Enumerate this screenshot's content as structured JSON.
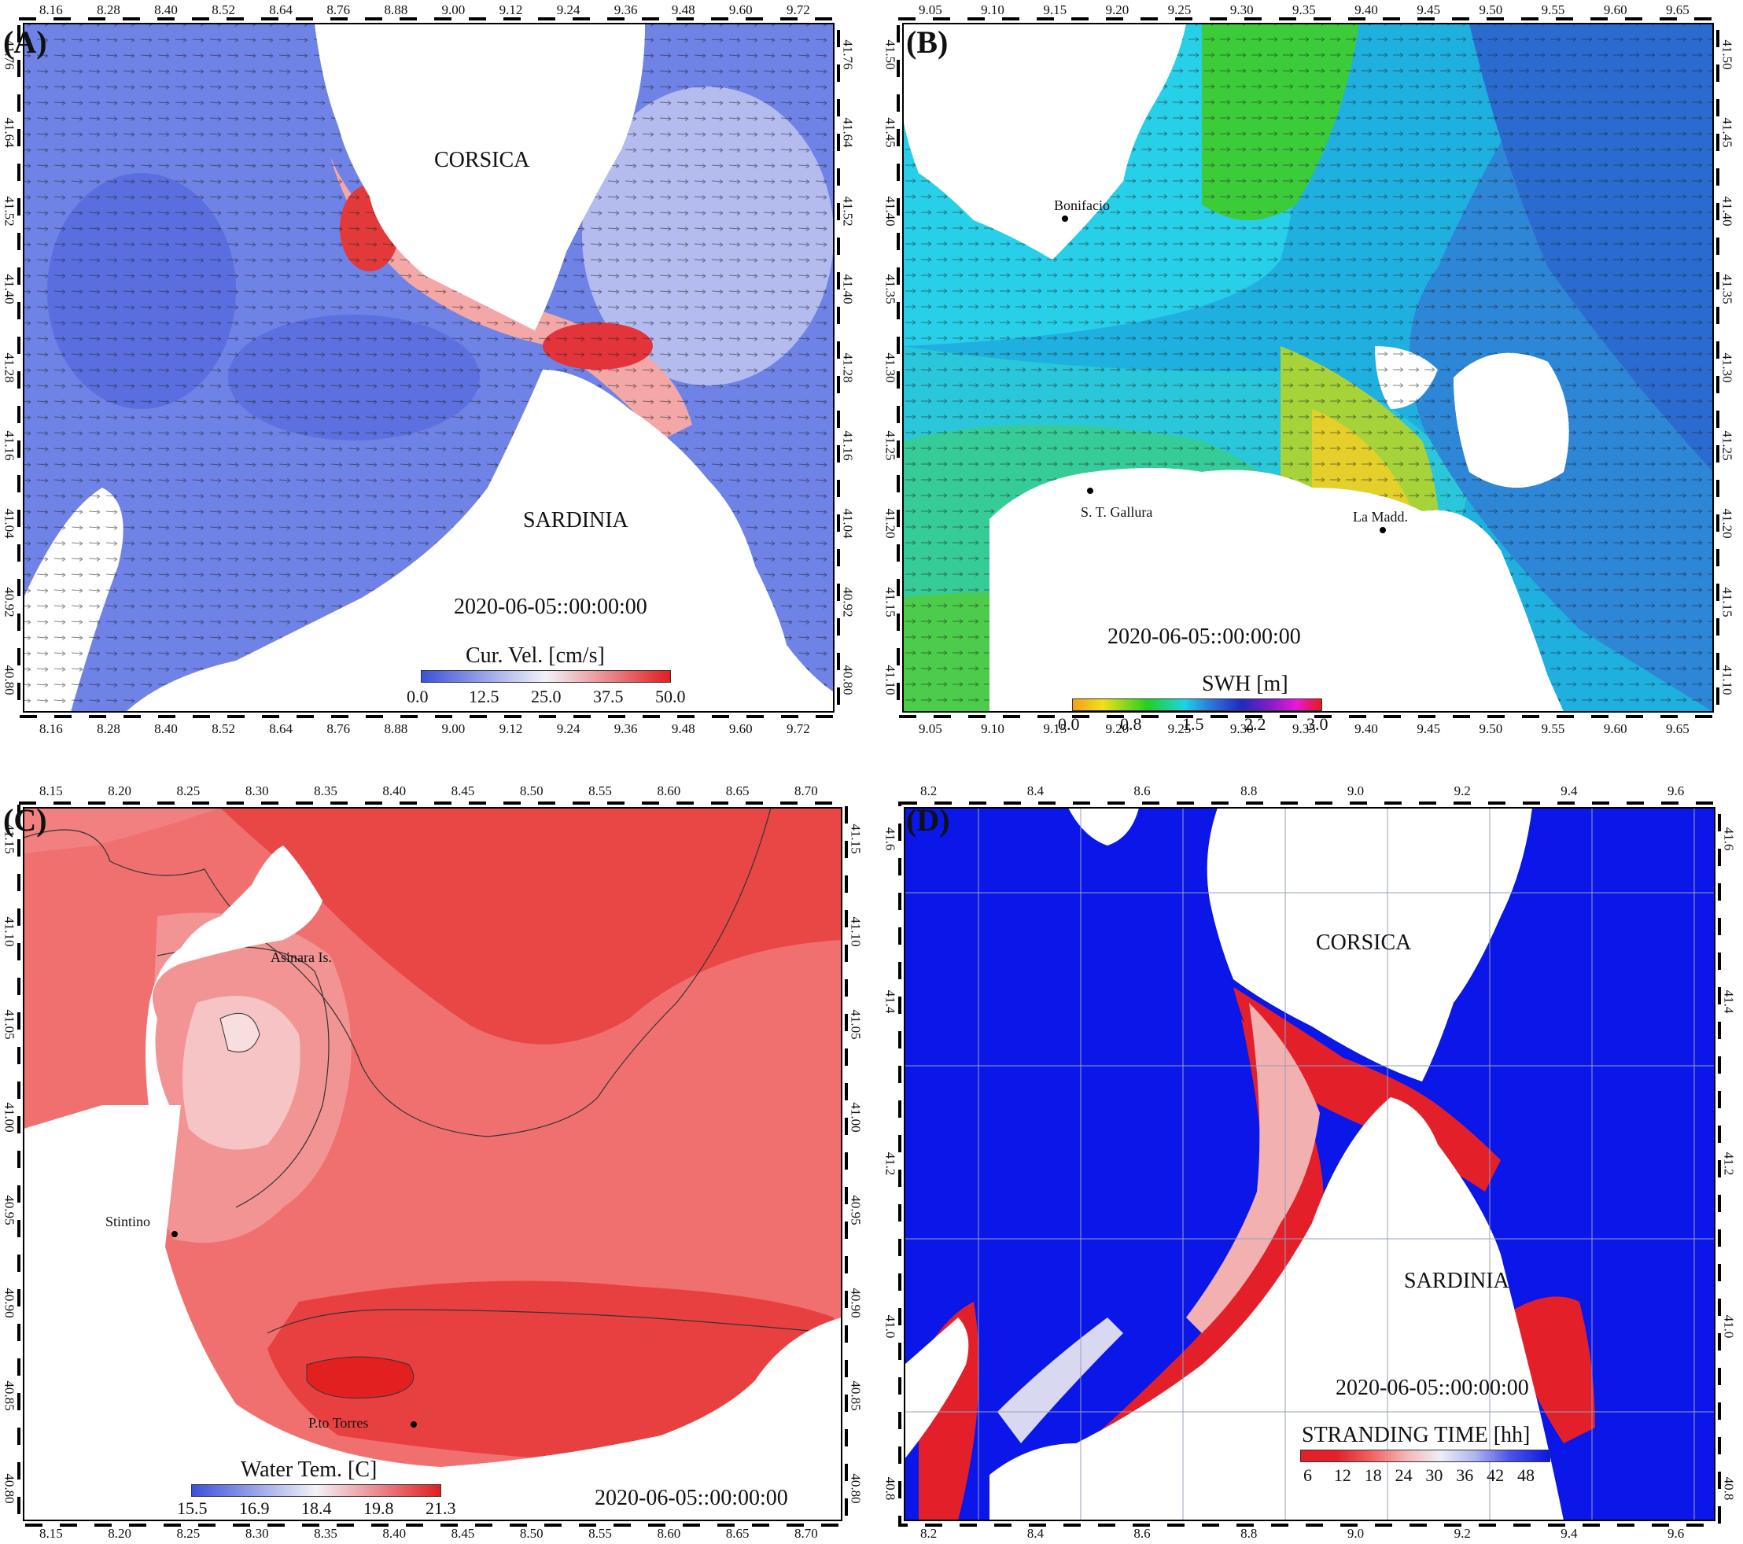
{
  "colors": {
    "vel_low": "#3b52d8",
    "vel_mid": "#f2f2f8",
    "vel_high": "#e01f1f",
    "swh_yellow": "#f2d21a",
    "swh_green": "#2fd02a",
    "swh_cyan": "#1cd4e6",
    "swh_blue": "#2f7bd6",
    "temp_pale": "#f6d4d4",
    "temp_red": "#f06b6b",
    "temp_deep": "#e53a3a",
    "strand_blue": "#0a17e8",
    "strand_red": "#e3202a"
  },
  "panels": [
    {
      "id": "A",
      "letter": "(A)",
      "top_ticks": [
        "8.16",
        "8.28",
        "8.40",
        "8.52",
        "8.64",
        "8.76",
        "8.88",
        "9.00",
        "9.12",
        "9.24",
        "9.36",
        "9.48",
        "9.60",
        "9.72"
      ],
      "bottom_ticks": [
        "8.16",
        "8.28",
        "8.40",
        "8.52",
        "8.64",
        "8.76",
        "8.88",
        "9.00",
        "9.12",
        "9.24",
        "9.36",
        "9.48",
        "9.60",
        "9.72"
      ],
      "left_ticks": [
        "41.76",
        "41.64",
        "41.52",
        "41.40",
        "41.28",
        "41.16",
        "41.04",
        "40.92",
        "40.80"
      ],
      "right_ticks": [
        "41.76",
        "41.64",
        "41.52",
        "41.40",
        "41.28",
        "41.16",
        "41.04",
        "40.92",
        "40.80"
      ],
      "places": [
        {
          "name": "CORSICA",
          "size": "big"
        },
        {
          "name": "SARDINIA",
          "size": "big"
        }
      ],
      "date": "2020-06-05::00:00:00",
      "colorbar": {
        "title": "Cur. Vel. [cm/s]",
        "ticks": [
          "0.0",
          "12.5",
          "25.0",
          "37.5",
          "50.0"
        ],
        "type": "velocity"
      }
    },
    {
      "id": "B",
      "letter": "(B)",
      "top_ticks": [
        "9.05",
        "9.10",
        "9.15",
        "9.20",
        "9.25",
        "9.30",
        "9.35",
        "9.40",
        "9.45",
        "9.50",
        "9.55",
        "9.60",
        "9.65"
      ],
      "bottom_ticks": [
        "9.05",
        "9.10",
        "9.15",
        "9.20",
        "9.25",
        "9.30",
        "9.35",
        "9.40",
        "9.45",
        "9.50",
        "9.55",
        "9.60",
        "9.65"
      ],
      "left_ticks": [
        "41.50",
        "41.45",
        "41.40",
        "41.35",
        "41.30",
        "41.25",
        "41.20",
        "41.15",
        "41.10"
      ],
      "right_ticks": [
        "41.50",
        "41.45",
        "41.40",
        "41.35",
        "41.30",
        "41.25",
        "41.20",
        "41.15",
        "41.10"
      ],
      "places": [
        {
          "name": "Bonifacio",
          "size": "small"
        },
        {
          "name": "S. T. Gallura",
          "size": "small"
        },
        {
          "name": "La Madd.",
          "size": "small"
        }
      ],
      "date": "2020-06-05::00:00:00",
      "colorbar": {
        "title": "SWH [m]",
        "ticks": [
          "0.0",
          "0.8",
          "1.5",
          "2.2",
          "3.0"
        ],
        "type": "swh"
      }
    },
    {
      "id": "C",
      "letter": "(C)",
      "top_ticks": [
        "8.15",
        "8.20",
        "8.25",
        "8.30",
        "8.35",
        "8.40",
        "8.45",
        "8.50",
        "8.55",
        "8.60",
        "8.65",
        "8.70"
      ],
      "bottom_ticks": [
        "8.15",
        "8.20",
        "8.25",
        "8.30",
        "8.35",
        "8.40",
        "8.45",
        "8.50",
        "8.55",
        "8.60",
        "8.65",
        "8.70"
      ],
      "left_ticks": [
        "41.15",
        "41.10",
        "41.05",
        "41.00",
        "40.95",
        "40.90",
        "40.85",
        "40.80"
      ],
      "right_ticks": [
        "41.15",
        "41.10",
        "41.05",
        "41.00",
        "40.95",
        "40.90",
        "40.85",
        "40.80"
      ],
      "places": [
        {
          "name": "Asinara Is.",
          "size": "small"
        },
        {
          "name": "Stintino",
          "size": "small"
        },
        {
          "name": "P.to Torres",
          "size": "small"
        }
      ],
      "date": "2020-06-05::00:00:00",
      "colorbar": {
        "title": "Water Tem. [C]",
        "ticks": [
          "15.5",
          "16.9",
          "18.4",
          "19.8",
          "21.3"
        ],
        "type": "velocity"
      }
    },
    {
      "id": "D",
      "letter": "(D)",
      "top_ticks": [
        "8.2",
        "8.4",
        "8.6",
        "8.8",
        "9.0",
        "9.2",
        "9.4",
        "9.6"
      ],
      "bottom_ticks": [
        "8.2",
        "8.4",
        "8.6",
        "8.8",
        "9.0",
        "9.2",
        "9.4",
        "9.6"
      ],
      "left_ticks": [
        "41.6",
        "41.4",
        "41.2",
        "41.0",
        "40.8"
      ],
      "right_ticks": [
        "41.6",
        "41.4",
        "41.2",
        "41.0",
        "40.8"
      ],
      "places": [
        {
          "name": "CORSICA",
          "size": "big"
        },
        {
          "name": "SARDINIA",
          "size": "big"
        }
      ],
      "date": "2020-06-05::00:00:00",
      "colorbar": {
        "title": "STRANDING TIME [hh]",
        "ticks": [
          "6",
          "12",
          "18",
          "24",
          "30",
          "36",
          "42",
          "48"
        ],
        "type": "stranding"
      }
    }
  ]
}
